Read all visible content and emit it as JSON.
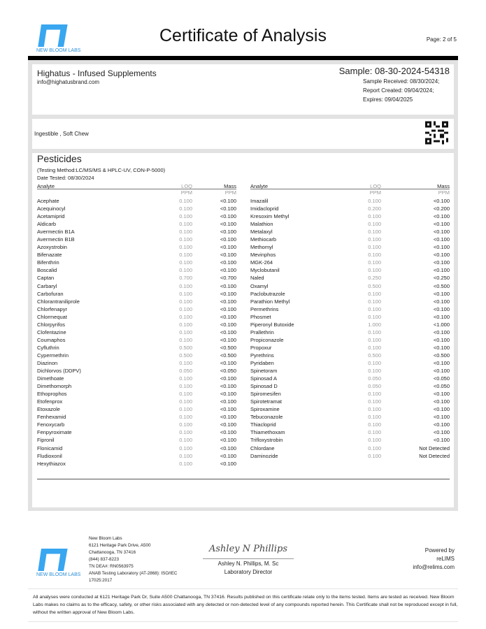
{
  "header": {
    "lab_name": "NEW BLOOM LABS",
    "title": "Certificate of Analysis",
    "page": "Page: 2 of 5",
    "brand_color": "#39a6f0"
  },
  "client": {
    "name": "Highatus - Infused Supplements",
    "email": "info@highatusbrand.com"
  },
  "sample": {
    "id": "Sample: 08-30-2024-54318",
    "received": "Sample Received: 08/30/2024;",
    "created": "Report Created: 09/04/2024;",
    "expires": "Expires: 09/04/2025"
  },
  "product": {
    "type": "Ingestible , Soft Chew",
    "qr_icon": "qr-code-icon"
  },
  "section": {
    "title": "Pesticides",
    "method": "(Testing Method:LC/MS/MS & HPLC-UV, CON-P-5000)",
    "date_tested": "Date Tested: 08/30/2024",
    "columns": {
      "analyte": "Analyte",
      "loq": "LOQ",
      "mass": "Mass",
      "loq_unit": "PPM",
      "mass_unit": "PPM"
    },
    "left": [
      [
        "Acephate",
        "0.100",
        "<0.100"
      ],
      [
        "Acequinocyl",
        "0.100",
        "<0.100"
      ],
      [
        "Acetamiprid",
        "0.100",
        "<0.100"
      ],
      [
        "Aldicarb",
        "0.100",
        "<0.100"
      ],
      [
        "Avermectin B1A",
        "0.100",
        "<0.100"
      ],
      [
        "Avermectin B1B",
        "0.100",
        "<0.100"
      ],
      [
        "Azoxystrobin",
        "0.100",
        "<0.100"
      ],
      [
        "Bifenazate",
        "0.100",
        "<0.100"
      ],
      [
        "Bifenthrin",
        "0.100",
        "<0.100"
      ],
      [
        "Boscalid",
        "0.100",
        "<0.100"
      ],
      [
        "Captan",
        "0.700",
        "<0.700"
      ],
      [
        "Carbaryl",
        "0.100",
        "<0.100"
      ],
      [
        "Carbofuran",
        "0.100",
        "<0.100"
      ],
      [
        "Chlorantraniliprole",
        "0.100",
        "<0.100"
      ],
      [
        "Chlorfenapyr",
        "0.100",
        "<0.100"
      ],
      [
        "Chlormequat",
        "0.100",
        "<0.100"
      ],
      [
        "Chlorpyrifos",
        "0.100",
        "<0.100"
      ],
      [
        "Clofentazine",
        "0.100",
        "<0.100"
      ],
      [
        "Coumaphos",
        "0.100",
        "<0.100"
      ],
      [
        "Cyfluthrin",
        "0.500",
        "<0.500"
      ],
      [
        "Cypermethrin",
        "0.500",
        "<0.500"
      ],
      [
        "Diazinon",
        "0.100",
        "<0.100"
      ],
      [
        "Dichlorvos (DDPV)",
        "0.050",
        "<0.050"
      ],
      [
        "Dimethoate",
        "0.100",
        "<0.100"
      ],
      [
        "Dimethomorph",
        "0.100",
        "<0.100"
      ],
      [
        "Ethoprophos",
        "0.100",
        "<0.100"
      ],
      [
        "Etofenprox",
        "0.100",
        "<0.100"
      ],
      [
        "Etoxazole",
        "0.100",
        "<0.100"
      ],
      [
        "Fenhexamid",
        "0.100",
        "<0.100"
      ],
      [
        "Fenoxycarb",
        "0.100",
        "<0.100"
      ],
      [
        "Fenpyroximate",
        "0.100",
        "<0.100"
      ],
      [
        "Fipronil",
        "0.100",
        "<0.100"
      ],
      [
        "Flonicamid",
        "0.100",
        "<0.100"
      ],
      [
        "Fludioxonil",
        "0.100",
        "<0.100"
      ],
      [
        "Hexythiazox",
        "0.100",
        "<0.100"
      ]
    ],
    "right": [
      [
        "Imazalil",
        "0.100",
        "<0.100"
      ],
      [
        "Imidacloprid",
        "0.200",
        "<0.200"
      ],
      [
        "Kresoxim Methyl",
        "0.100",
        "<0.100"
      ],
      [
        "Malathion",
        "0.100",
        "<0.100"
      ],
      [
        "Metalaxyl",
        "0.100",
        "<0.100"
      ],
      [
        "Methiocarb",
        "0.100",
        "<0.100"
      ],
      [
        "Methomyl",
        "0.100",
        "<0.100"
      ],
      [
        "Mevinphos",
        "0.100",
        "<0.100"
      ],
      [
        "MGK-264",
        "0.100",
        "<0.100"
      ],
      [
        "Myclobutanil",
        "0.100",
        "<0.100"
      ],
      [
        "Naled",
        "0.250",
        "<0.250"
      ],
      [
        "Oxamyl",
        "0.500",
        "<0.500"
      ],
      [
        "Paclobutrazole",
        "0.100",
        "<0.100"
      ],
      [
        "Parathion Methyl",
        "0.100",
        "<0.100"
      ],
      [
        "Permethrins",
        "0.100",
        "<0.100"
      ],
      [
        "Phosmet",
        "0.100",
        "<0.100"
      ],
      [
        "Piperonyl Butoxide",
        "1.000",
        "<1.000"
      ],
      [
        "Prallethrin",
        "0.100",
        "<0.100"
      ],
      [
        "Propiconazole",
        "0.100",
        "<0.100"
      ],
      [
        "Propoxur",
        "0.100",
        "<0.100"
      ],
      [
        "Pyrethrins",
        "0.500",
        "<0.500"
      ],
      [
        "Pyridaben",
        "0.100",
        "<0.100"
      ],
      [
        "Spinetoram",
        "0.100",
        "<0.100"
      ],
      [
        "Spinosad A",
        "0.050",
        "<0.050"
      ],
      [
        "Spinosad D",
        "0.050",
        "<0.050"
      ],
      [
        "Spiromesifen",
        "0.100",
        "<0.100"
      ],
      [
        "Spirotetramat",
        "0.100",
        "<0.100"
      ],
      [
        "Spiroxamine",
        "0.100",
        "<0.100"
      ],
      [
        "Tebuconazole",
        "0.100",
        "<0.100"
      ],
      [
        "Thiacloprid",
        "0.100",
        "<0.100"
      ],
      [
        "Thiamethoxam",
        "0.100",
        "<0.100"
      ],
      [
        "Trifloxystrobin",
        "0.100",
        "<0.100"
      ],
      [
        "Chlordane",
        "0.100",
        "Not Detected"
      ],
      [
        "Daminozide",
        "0.100",
        "Not Detected"
      ]
    ]
  },
  "footer": {
    "lab_name": "NEW BLOOM LABS",
    "address": [
      "New Bloom Labs",
      "6121 Heritage Park Drive, A500",
      "Chattanooga, TN 37416",
      "(844) 837-8223",
      "TN DEA#: RN0563975",
      "ANAB Testing Laboratory (AT-2868): ISO/IEC",
      "17025:2017"
    ],
    "signature": "Ashley N Phillips",
    "signer": "Ashley N. Phillips, M. Sc",
    "signer_title": "Laboratory Director",
    "powered": [
      "Powered by",
      "reLIMS",
      "info@relims.com"
    ],
    "disclaimer": "All analyses were conducted at 6121 Heritage Park Dr, Suite A500 Chattanooga, TN 37416. Results published on this certificate relate only to the items tested. Items are tested as received. New Bloom Labs makes no claims as to the efficacy, safety, or other risks associated with any detected or non-detected level of any compounds reported herein. This Certificate shall not be reproduced except in full, without the written approval of New Bloom Labs."
  }
}
